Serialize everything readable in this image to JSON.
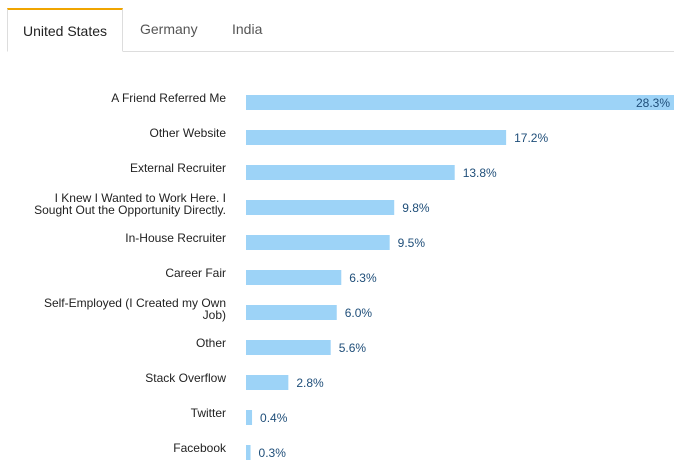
{
  "tabs": [
    {
      "label": "United States",
      "active": true
    },
    {
      "label": "Germany",
      "active": false
    },
    {
      "label": "India",
      "active": false
    }
  ],
  "colors": {
    "bar": "#9dd3f7",
    "value_text": "#1f4e79",
    "active_tab_accent": "#f0a500"
  },
  "chart_data": {
    "type": "bar",
    "orientation": "horizontal",
    "categories": [
      "A Friend Referred Me",
      "Other Website",
      "External Recruiter",
      "I Knew I Wanted to Work Here. I Sought Out the Opportunity Directly.",
      "In-House Recruiter",
      "Career Fair",
      "Self-Employed (I Created my Own Job)",
      "Other",
      "Stack Overflow",
      "Twitter",
      "Facebook"
    ],
    "category_lines": [
      [
        "A Friend Referred Me"
      ],
      [
        "Other Website"
      ],
      [
        "External Recruiter"
      ],
      [
        "I Knew I Wanted to Work Here. I",
        "Sought Out the Opportunity Directly."
      ],
      [
        "In-House Recruiter"
      ],
      [
        "Career Fair"
      ],
      [
        "Self-Employed (I Created my Own",
        "Job)"
      ],
      [
        "Other"
      ],
      [
        "Stack Overflow"
      ],
      [
        "Twitter"
      ],
      [
        "Facebook"
      ]
    ],
    "values": [
      28.3,
      17.2,
      13.8,
      9.8,
      9.5,
      6.3,
      6.0,
      5.6,
      2.8,
      0.4,
      0.3
    ],
    "value_labels": [
      "28.3%",
      "17.2%",
      "13.8%",
      "9.8%",
      "9.5%",
      "6.3%",
      "6.0%",
      "5.6%",
      "2.8%",
      "0.4%",
      "0.3%"
    ],
    "xlim": [
      0,
      28.3
    ],
    "grid": false,
    "legend": "none"
  }
}
